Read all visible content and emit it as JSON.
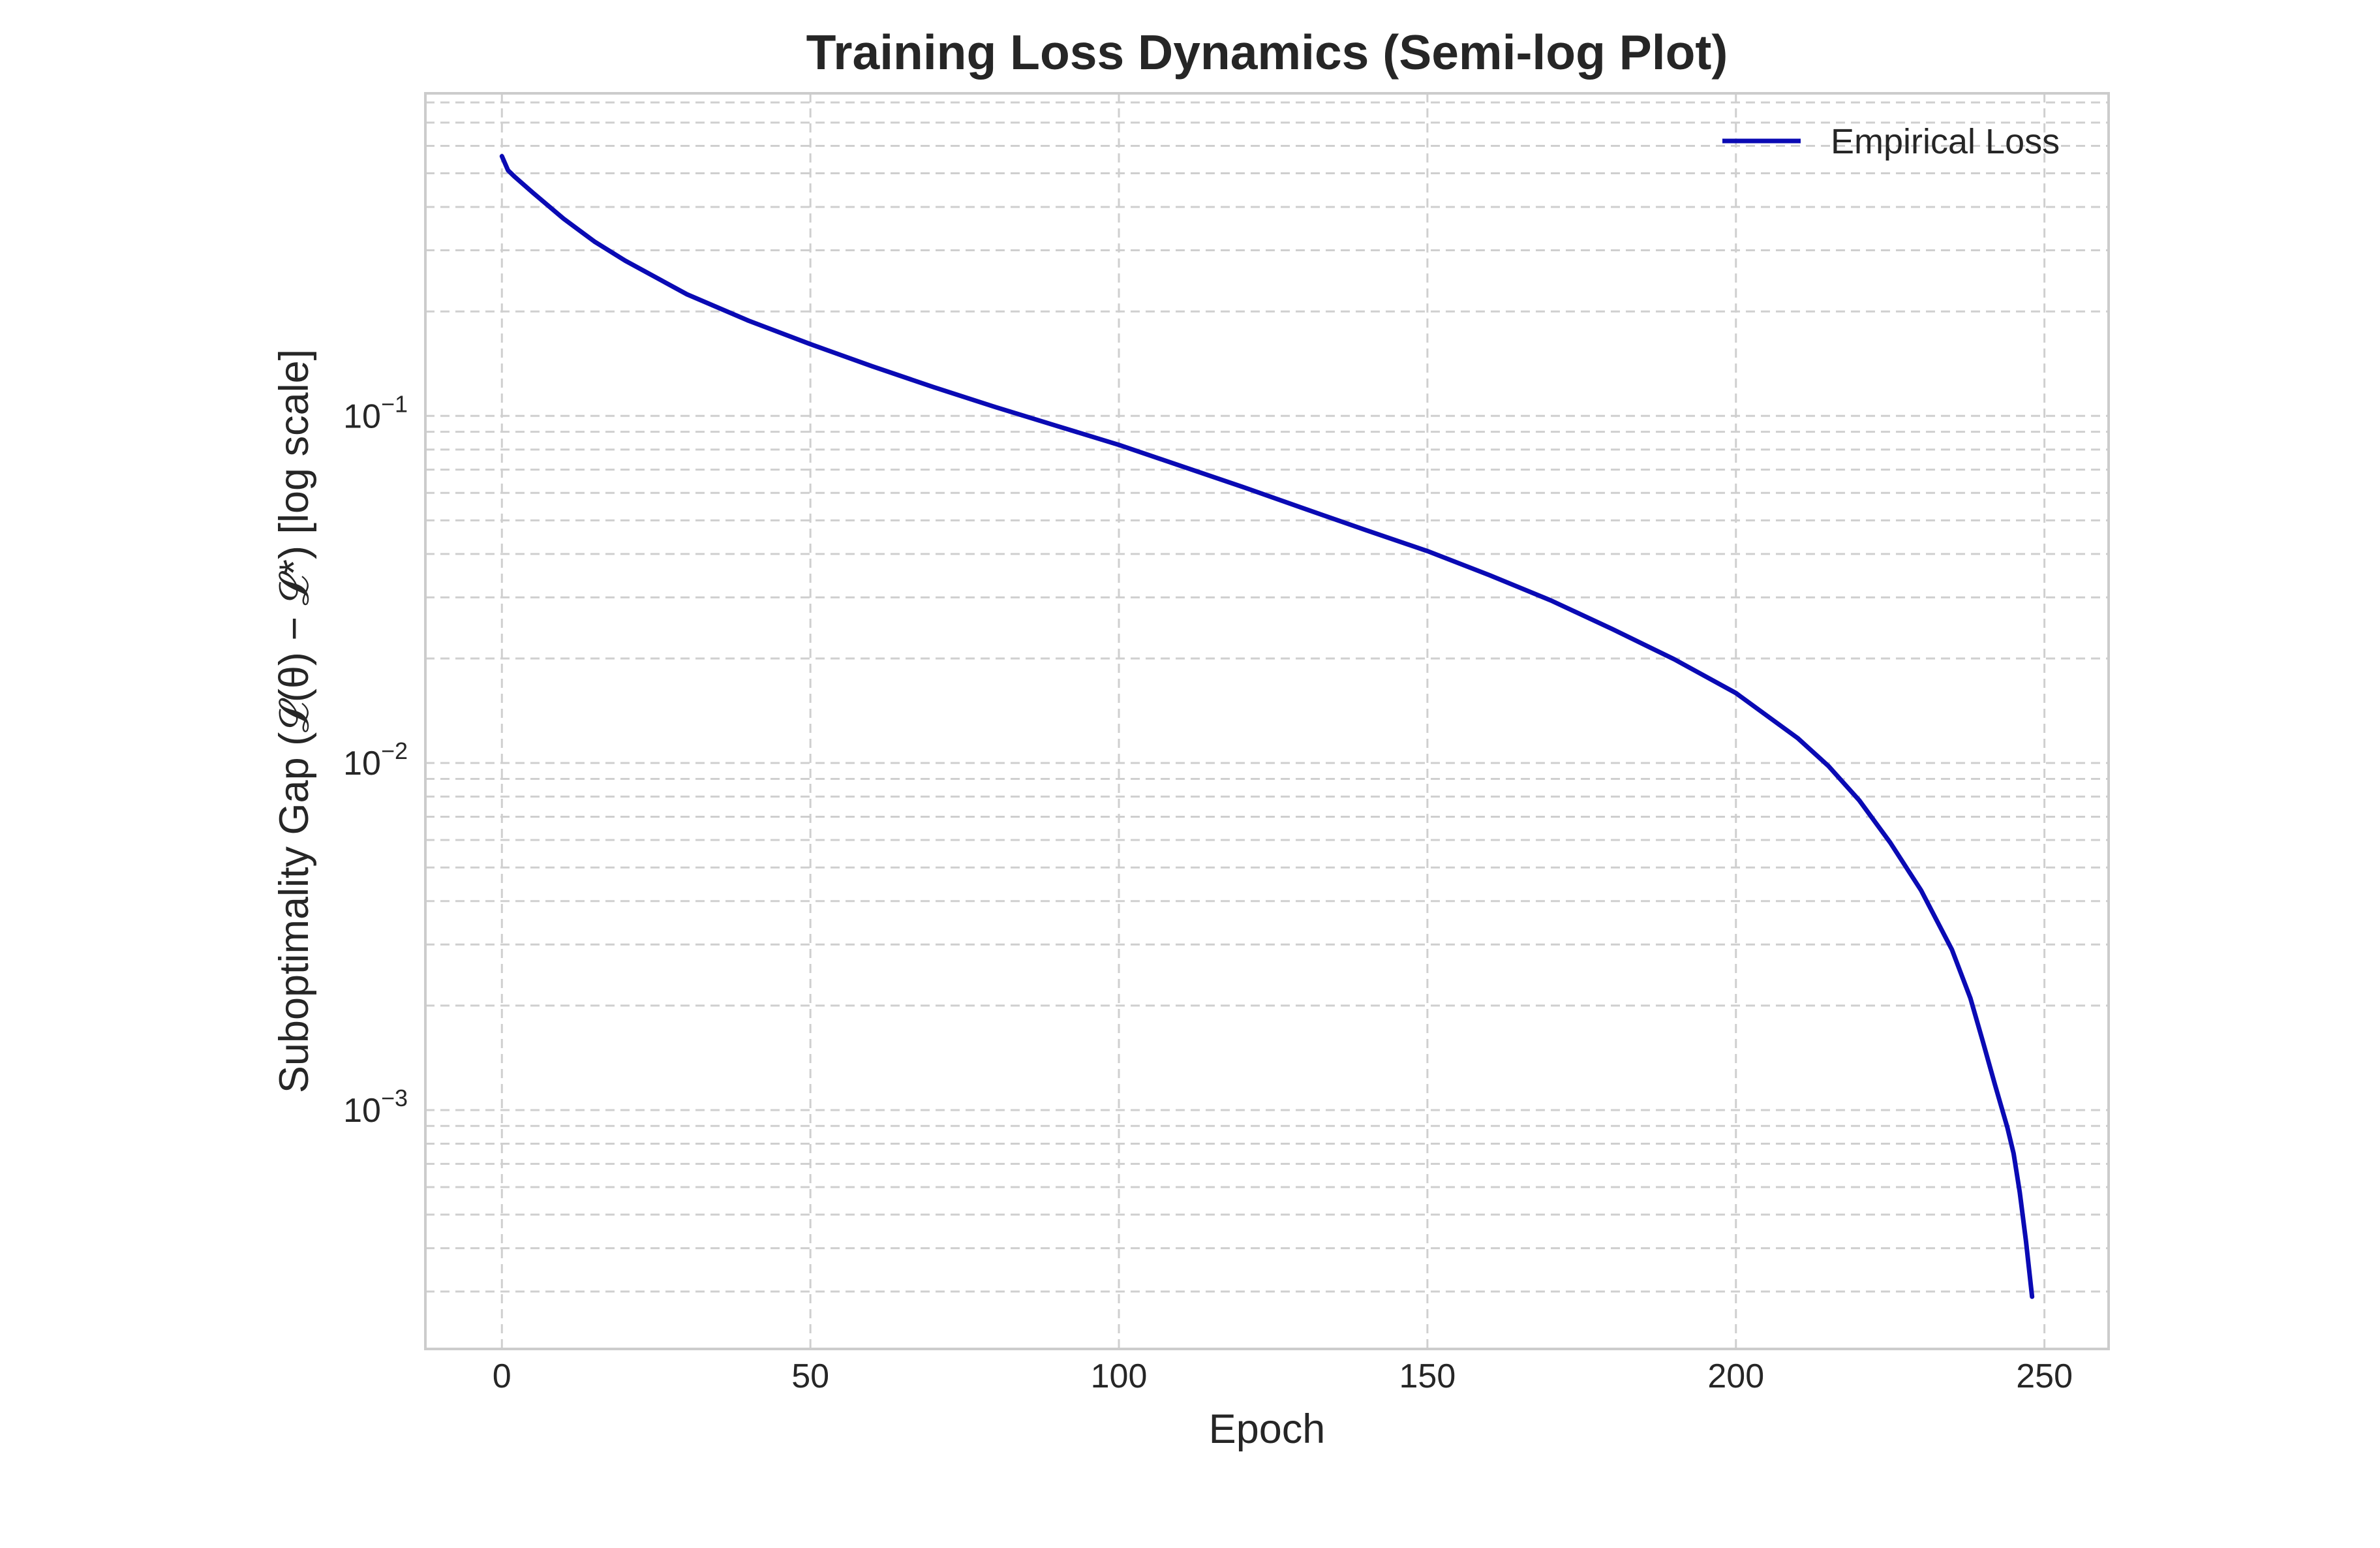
{
  "chart_data": {
    "type": "line",
    "title": "Training Loss Dynamics (Semi-log Plot)",
    "xlabel": "Epoch",
    "ylabel": "Suboptimality Gap (𝓛(θ) − 𝓛*) [log scale]",
    "yscale": "log",
    "xlim": [
      -12.4,
      260.4
    ],
    "ylim": [
      0.000205,
      0.85
    ],
    "x_ticks": [
      "0",
      "50",
      "100",
      "150",
      "200",
      "250"
    ],
    "y_ticks": [
      {
        "base": "10",
        "exp": "−1",
        "value": 0.1
      },
      {
        "base": "10",
        "exp": "−2",
        "value": 0.01
      },
      {
        "base": "10",
        "exp": "−3",
        "value": 0.001
      }
    ],
    "grid": true,
    "grid_minor_y": true,
    "legend_position": "top-right",
    "series": [
      {
        "name": "Empirical Loss",
        "color": "#0a0ab4",
        "x": [
          0,
          1,
          2,
          5,
          10,
          15,
          20,
          30,
          40,
          50,
          60,
          70,
          80,
          90,
          100,
          110,
          120,
          130,
          140,
          150,
          160,
          170,
          180,
          190,
          200,
          210,
          215,
          220,
          225,
          230,
          235,
          238,
          240,
          242,
          244,
          245,
          246,
          247,
          248
        ],
        "y": [
          0.56,
          0.51,
          0.49,
          0.44,
          0.37,
          0.318,
          0.28,
          0.224,
          0.188,
          0.161,
          0.139,
          0.121,
          0.106,
          0.0935,
          0.0825,
          0.0718,
          0.0625,
          0.0541,
          0.0469,
          0.0408,
          0.0348,
          0.0294,
          0.0243,
          0.0199,
          0.0159,
          0.0118,
          0.0098,
          0.0078,
          0.0059,
          0.0043,
          0.0029,
          0.0021,
          0.00158,
          0.00118,
          0.00089,
          0.00075,
          0.00058,
          0.00042,
          0.00029
        ]
      }
    ]
  }
}
